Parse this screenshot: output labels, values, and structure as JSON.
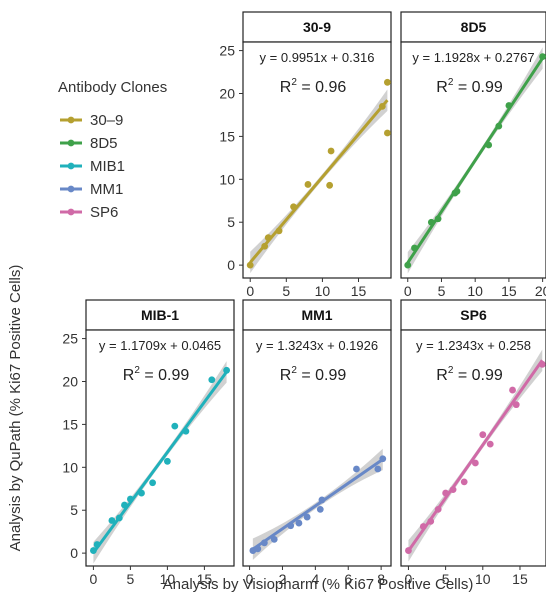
{
  "chart_data": {
    "type": "scatter",
    "xlabel": "Analysis by Visiopharm (% Ki67 Positive Cells)",
    "ylabel": "Analysis by QuPath (% Ki67 Positive Cells)",
    "legend": {
      "title": "Antibody Clones",
      "position": "left",
      "entries": [
        {
          "label": "30–9",
          "color": "#b5a030"
        },
        {
          "label": "8D5",
          "color": "#3fa14a"
        },
        {
          "label": "MIB1",
          "color": "#20b1bb"
        },
        {
          "label": "MM1",
          "color": "#6888c7"
        },
        {
          "label": "SP6",
          "color": "#d06aa7"
        }
      ]
    },
    "panels": [
      {
        "strip": "30-9",
        "color": "#b5a030",
        "equation": "y = 0.9951x + 0.316",
        "r2_prefix": "R",
        "r2_sup": "2",
        "r2_value": " = 0.96",
        "slope": 0.9951,
        "intercept": 0.316,
        "xlim": [
          -1,
          19.5
        ],
        "ylim": [
          -1.5,
          26
        ],
        "xticks": [
          "0",
          "5",
          "10",
          "15"
        ],
        "yticks": [
          "0",
          "5",
          "10",
          "15",
          "20",
          "25"
        ],
        "x": [
          0,
          2,
          2.5,
          4,
          6,
          8,
          11,
          11.2,
          18.3,
          19,
          19
        ],
        "y": [
          0,
          2.2,
          3.2,
          4,
          6.8,
          9.4,
          9.3,
          13.3,
          18.5,
          21.3,
          15.4
        ]
      },
      {
        "strip": "8D5",
        "color": "#3fa14a",
        "equation": "y = 1.1928x + 0.2767",
        "r2_prefix": "R",
        "r2_sup": "2",
        "r2_value": " = 0.99",
        "slope": 1.1928,
        "intercept": 0.2767,
        "xlim": [
          -1,
          20.5
        ],
        "ylim": [
          -1.5,
          26
        ],
        "xticks": [
          "0",
          "5",
          "10",
          "15",
          "20"
        ],
        "yticks": [
          "0",
          "5",
          "10",
          "15",
          "20",
          "25"
        ],
        "x": [
          0,
          1,
          3.5,
          4.5,
          7,
          7.3,
          12,
          13.5,
          15,
          20
        ],
        "y": [
          0,
          2,
          5,
          5.4,
          8.4,
          8.6,
          14,
          16.2,
          18.6,
          24.3
        ]
      },
      {
        "strip": "MIB-1",
        "color": "#20b1bb",
        "equation": "y = 1.1709x + 0.0465",
        "r2_prefix": "R",
        "r2_sup": "2",
        "r2_value": " = 0.99",
        "slope": 1.1709,
        "intercept": 0.0465,
        "xlim": [
          -1,
          19
        ],
        "ylim": [
          -1.5,
          26
        ],
        "xticks": [
          "0",
          "5",
          "10",
          "15"
        ],
        "yticks": [
          "0",
          "5",
          "10",
          "15",
          "20",
          "25"
        ],
        "x": [
          0,
          0.5,
          2.5,
          3.5,
          4.2,
          5,
          6.5,
          8,
          10,
          11,
          12.5,
          16,
          18
        ],
        "y": [
          0.3,
          1,
          3.8,
          4.1,
          5.6,
          6.3,
          7,
          8.2,
          10.7,
          14.8,
          14.2,
          20.2,
          21.3
        ]
      },
      {
        "strip": "MM1",
        "color": "#6888c7",
        "equation": "y = 1.3243x + 0.1926",
        "r2_prefix": "R",
        "r2_sup": "2",
        "r2_value": " = 0.99",
        "slope": 1.3243,
        "intercept": 0.1926,
        "xlim": [
          -0.4,
          8.6
        ],
        "ylim": [
          -1.5,
          26
        ],
        "xticks": [
          "0",
          "2",
          "4",
          "6",
          "8"
        ],
        "yticks": [
          "0",
          "5",
          "10",
          "15",
          "20",
          "25"
        ],
        "x": [
          0.2,
          0.5,
          0.9,
          1.5,
          2.5,
          3,
          3.5,
          4.3,
          4.4,
          6.5,
          7.8,
          8.1
        ],
        "y": [
          0.3,
          0.5,
          1.2,
          1.6,
          3.2,
          3.5,
          4.2,
          5.1,
          6.2,
          9.8,
          9.8,
          11
        ]
      },
      {
        "strip": "SP6",
        "color": "#d06aa7",
        "equation": "y = 1.2343x + 0.258",
        "r2_prefix": "R",
        "r2_sup": "2",
        "r2_value": " = 0.99",
        "slope": 1.2343,
        "intercept": 0.258,
        "xlim": [
          -1,
          18.5
        ],
        "ylim": [
          -1.5,
          26
        ],
        "xticks": [
          "0",
          "5",
          "10",
          "15"
        ],
        "yticks": [
          "0",
          "5",
          "10",
          "15",
          "20",
          "25"
        ],
        "x": [
          0,
          2,
          3,
          4,
          5,
          6,
          7.5,
          9,
          10,
          11,
          14,
          14.5,
          18
        ],
        "y": [
          0.3,
          3.1,
          3.7,
          5.1,
          7,
          7.4,
          8.3,
          10.5,
          13.8,
          12.7,
          19,
          17.3,
          22
        ]
      }
    ],
    "grid": false
  }
}
